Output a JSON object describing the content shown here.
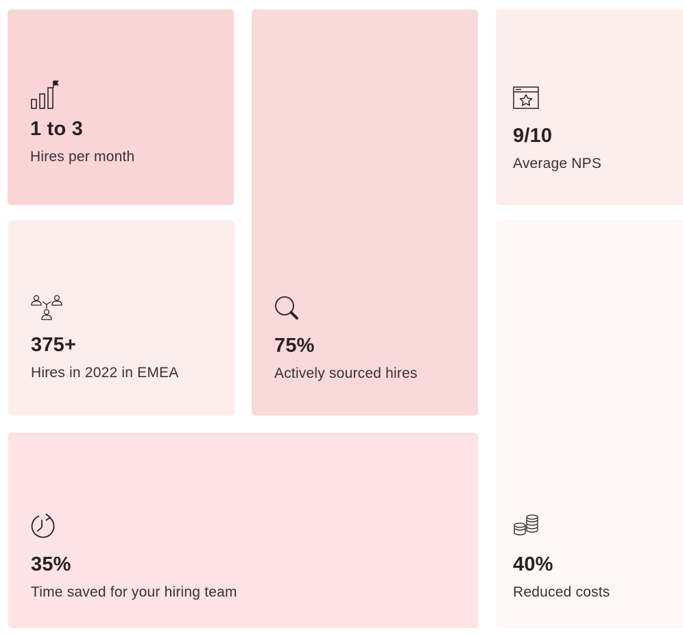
{
  "stats": [
    {
      "value": "1 to 3",
      "label": "Hires per month",
      "icon": "bar-chart-flag-icon",
      "background": "#f9d5d6"
    },
    {
      "value": "75%",
      "label": "Actively sourced hires",
      "icon": "magnifier-icon",
      "background": "#f9d9d9"
    },
    {
      "value": "9/10",
      "label": "Average NPS",
      "icon": "browser-star-icon",
      "background": "#fdeeee"
    },
    {
      "value": "375+",
      "label": "Hires in 2022 in EMEA",
      "icon": "people-network-icon",
      "background": "#fdeeee"
    },
    {
      "value": "40%",
      "label": "Reduced costs",
      "icon": "coins-icon",
      "background": "#fef8f8"
    },
    {
      "value": "35%",
      "label": "Time saved for your hiring team",
      "icon": "clock-refresh-icon",
      "background": "#fde3e4"
    }
  ]
}
